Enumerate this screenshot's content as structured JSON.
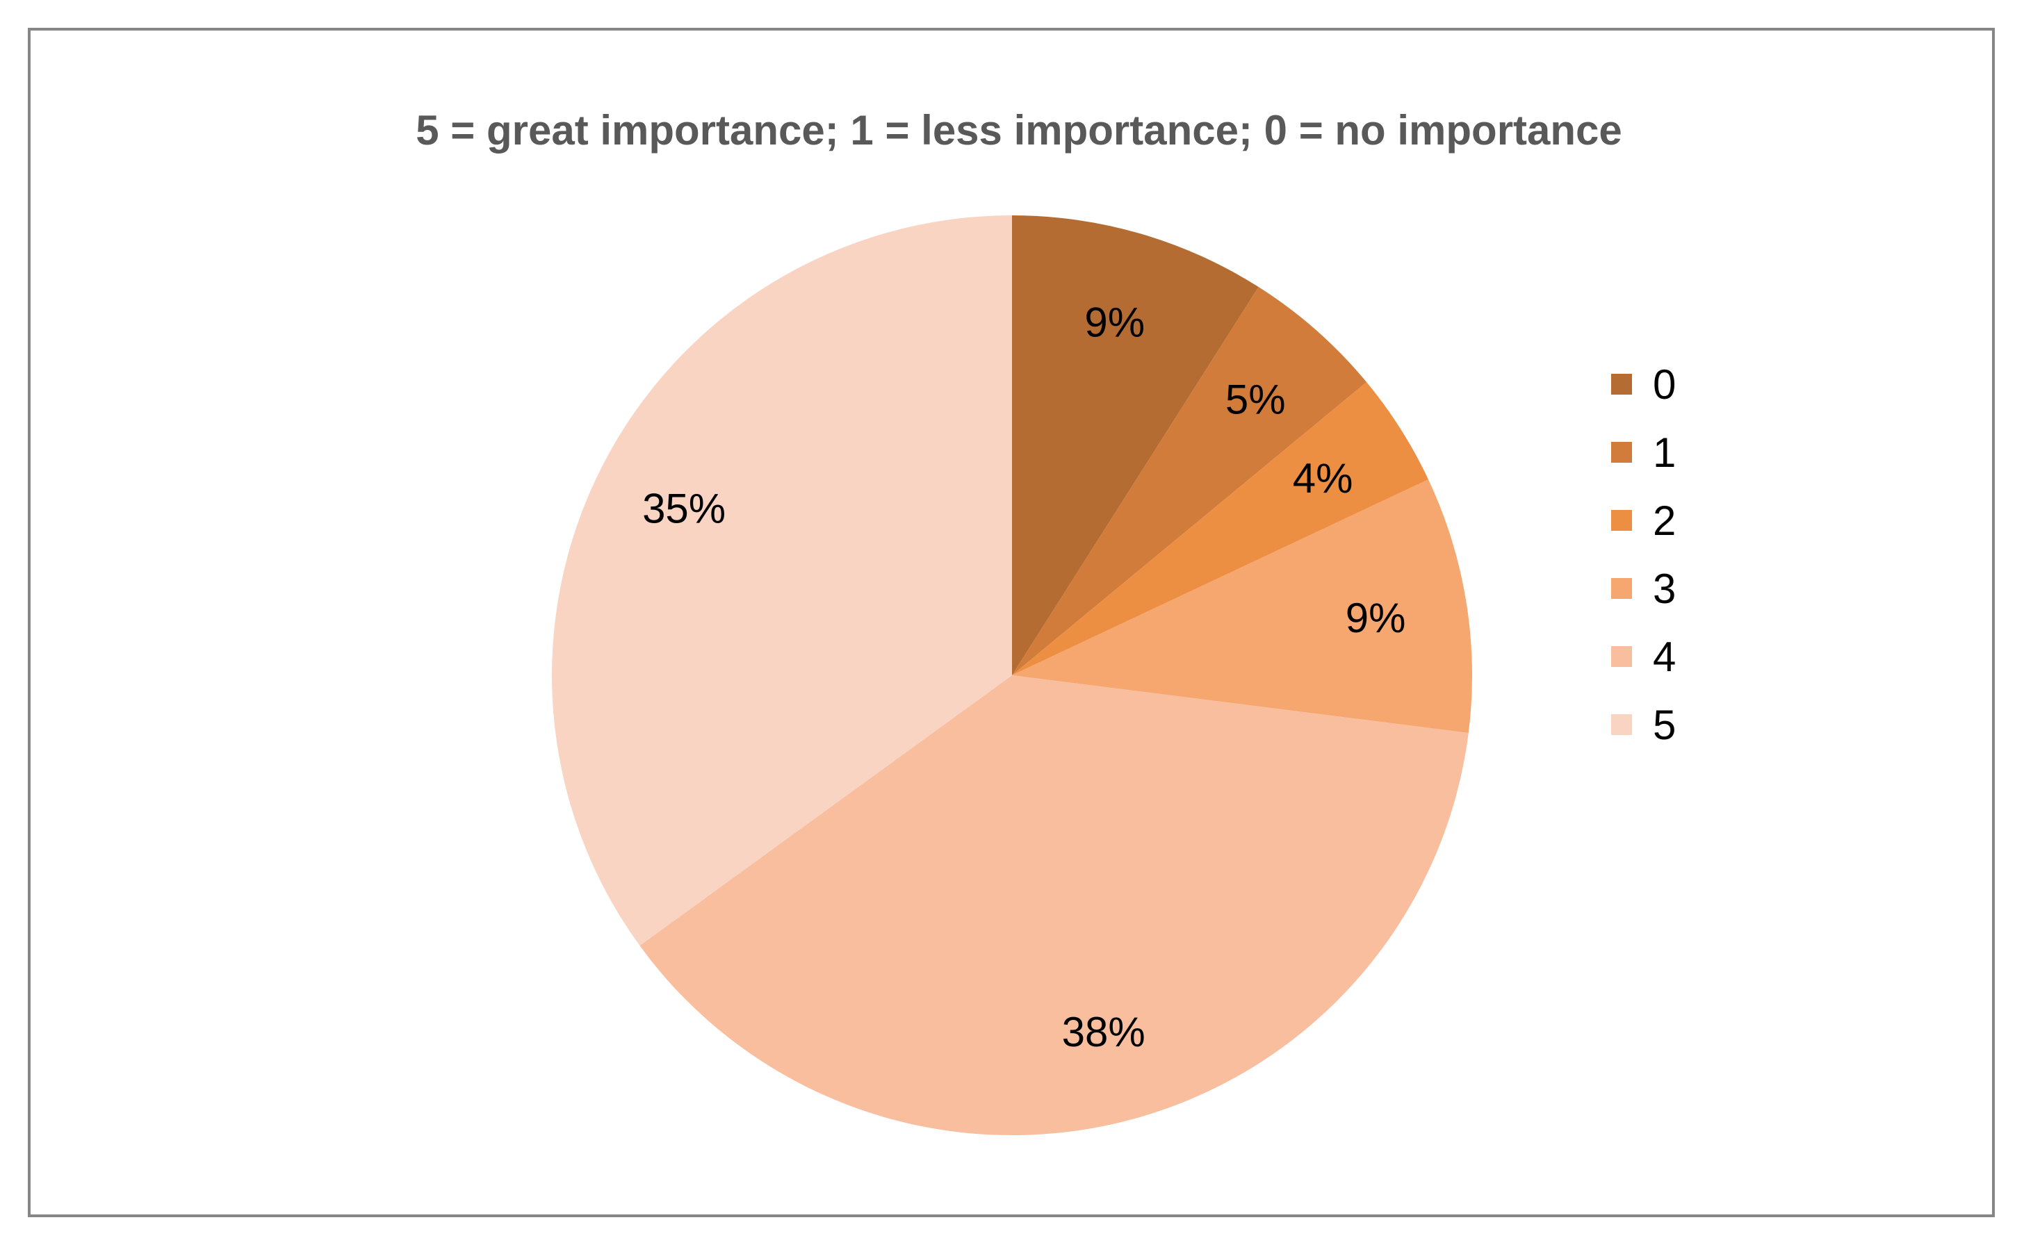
{
  "chart_data": {
    "type": "pie",
    "title": "5 = great importance; 1 = less importance; 0 = no importance",
    "categories": [
      "0",
      "1",
      "2",
      "3",
      "4",
      "5"
    ],
    "values": [
      9,
      5,
      4,
      9,
      38,
      35
    ],
    "labels": [
      "9%",
      "5%",
      "4%",
      "9%",
      "38%",
      "35%"
    ],
    "colors": [
      "#B46C32",
      "#D17C3A",
      "#ED8F42",
      "#F6A66F",
      "#F8BE9E",
      "#F9D4C3"
    ],
    "legend_position": "right",
    "start_angle": "12 o'clock",
    "direction": "clockwise"
  }
}
